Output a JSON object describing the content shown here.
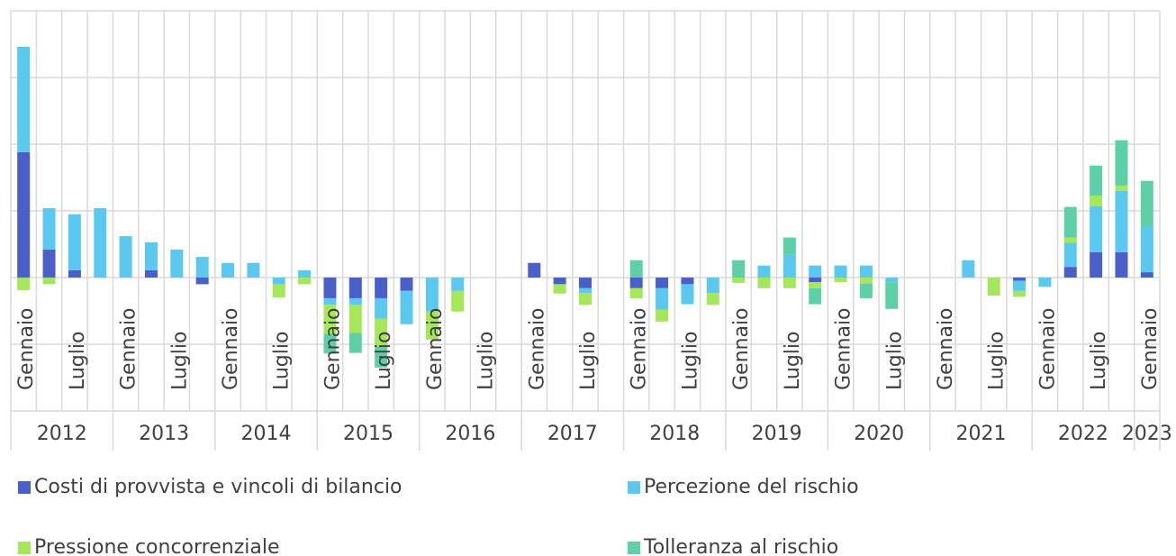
{
  "chart_data": {
    "type": "bar",
    "stacked": true,
    "categories": [
      "Gennaio",
      null,
      "Luglio",
      null,
      "Gennaio",
      null,
      "Luglio",
      null,
      "Gennaio",
      null,
      "Luglio",
      null,
      "Gennaio",
      null,
      "Luglio",
      null,
      "Gennaio",
      null,
      "Luglio",
      null,
      "Gennaio",
      null,
      "Luglio",
      null,
      "Gennaio",
      null,
      "Luglio",
      null,
      "Gennaio",
      null,
      "Luglio",
      null,
      "Gennaio",
      null,
      "Luglio",
      null,
      "Gennaio",
      null,
      "Luglio",
      null,
      "Gennaio",
      null,
      "Luglio",
      null,
      "Gennaio"
    ],
    "years": [
      "2012",
      "2013",
      "2014",
      "2015",
      "2016",
      "2017",
      "2018",
      "2019",
      "2020",
      "2021",
      "2022",
      "2023"
    ],
    "series": [
      {
        "name": "Costi di provvista e vincoli di bilancio",
        "color": "#4a5fc8",
        "values": [
          1.88,
          0.42,
          0.11,
          0,
          0,
          0.11,
          0,
          -0.1,
          0,
          0,
          0,
          0,
          -0.31,
          -0.31,
          -0.31,
          -0.2,
          0,
          0,
          0,
          0,
          0.22,
          -0.1,
          -0.16,
          0,
          -0.16,
          -0.16,
          -0.1,
          0,
          0,
          0,
          0,
          -0.07,
          0,
          0,
          0,
          0,
          0,
          0,
          0,
          -0.05,
          0,
          0.16,
          0.38,
          0.38,
          0.08
        ]
      },
      {
        "name": "Percezione del rischio",
        "color": "#5bc8f0",
        "values": [
          1.58,
          0.62,
          0.84,
          1.04,
          0.62,
          0.42,
          0.42,
          0.31,
          0.22,
          0.22,
          -0.1,
          0.11,
          -0.1,
          -0.1,
          -0.31,
          -0.5,
          -0.51,
          -0.2,
          0,
          0,
          0,
          0,
          -0.07,
          0,
          0,
          -0.32,
          -0.3,
          -0.23,
          0,
          0.18,
          0.34,
          0.18,
          0.18,
          0.18,
          -0.07,
          0,
          0,
          0.26,
          0,
          -0.15,
          -0.14,
          0.36,
          0.69,
          0.92,
          0.69
        ]
      },
      {
        "name": "Pressione concorrenziale",
        "color": "#a5e65a",
        "values": [
          -0.19,
          -0.1,
          0,
          0,
          0,
          0,
          0,
          0,
          0,
          0,
          -0.2,
          -0.1,
          -0.43,
          -0.42,
          -0.42,
          0,
          -0.42,
          -0.31,
          0,
          0,
          0,
          -0.14,
          -0.18,
          0,
          -0.15,
          -0.18,
          0,
          -0.18,
          -0.08,
          -0.16,
          -0.16,
          -0.09,
          -0.07,
          -0.09,
          0,
          0,
          0,
          0,
          -0.27,
          -0.09,
          0,
          0.08,
          0.16,
          0.08,
          0
        ]
      },
      {
        "name": "Tolleranza al rischio",
        "color": "#5ecfa6",
        "values": [
          0,
          0,
          0,
          0,
          0,
          0,
          0,
          0,
          0,
          0,
          0,
          0,
          -0.3,
          -0.3,
          -0.31,
          0,
          0,
          0,
          0,
          0,
          0,
          0,
          0,
          0,
          0.26,
          0,
          0,
          0,
          0.26,
          0,
          0.26,
          -0.24,
          0,
          -0.22,
          -0.4,
          0,
          0,
          0,
          0,
          0,
          0,
          0.46,
          0.45,
          0.68,
          0.68
        ]
      }
    ],
    "ylim": [
      -2,
      4
    ],
    "yticks": [
      -2,
      -1,
      0,
      1,
      2,
      3,
      4
    ],
    "grid": true
  }
}
